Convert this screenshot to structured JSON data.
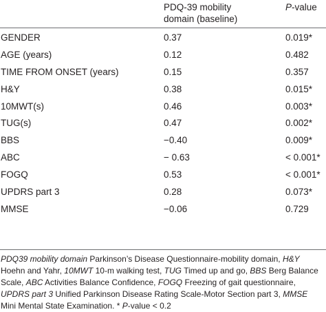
{
  "header": {
    "domain_line1": "PDQ-39 mobility",
    "domain_line2": "domain (baseline)",
    "p_italic": "P",
    "p_rest": "-value"
  },
  "rows": [
    {
      "label": "GENDER",
      "value": "0.37",
      "p": "0.019*"
    },
    {
      "label": "AGE (years)",
      "value": "0.12",
      "p": "0.482"
    },
    {
      "label": "TIME FROM ONSET (years)",
      "value": "0.15",
      "p": "0.357"
    },
    {
      "label": "H&Y",
      "value": "0.38",
      "p": "0.015*"
    },
    {
      "label": "10MWT(s)",
      "value": "0.46",
      "p": "0.003*"
    },
    {
      "label": "TUG(s)",
      "value": "0.47",
      "p": "0.002*"
    },
    {
      "label": "BBS",
      "value": "−0.40",
      "p": "0.009*"
    },
    {
      "label": "ABC",
      "value": "− 0.63",
      "p": "< 0.001*"
    },
    {
      "label": "FOGQ",
      "value": "0.53",
      "p": "< 0.001*"
    },
    {
      "label": "UPDRS part 3",
      "value": "0.28",
      "p": "0.073*"
    },
    {
      "label": "MMSE",
      "value": "−0.06",
      "p": "0.729"
    }
  ],
  "footnote": {
    "a_term": "PDQ39 mobility domain",
    "a_def": " Parkinson’s Disease Questionnaire-mobility domain, ",
    "b_term": "H&Y",
    "b_def": " Hoehn and Yahr, ",
    "c_term": "10MWT",
    "c_def": " 10-m walking test, ",
    "d_term": "TUG",
    "d_def": " Timed up and go, ",
    "e_term": "BBS",
    "e_def": " Berg Balance Scale, ",
    "f_term": "ABC",
    "f_def": " Activities Balance Confidence, ",
    "g_term": "FOGQ",
    "g_def": " Freezing of gait questionnaire, ",
    "h_term": "UPDRS part 3",
    "h_def": " Unified Parkinson Disease Rating Scale-Motor Section part 3, ",
    "i_term": "MMSE",
    "i_def": " Mini Mental State Examination. * ",
    "j_term": "P",
    "j_def": "-value < 0.2"
  }
}
